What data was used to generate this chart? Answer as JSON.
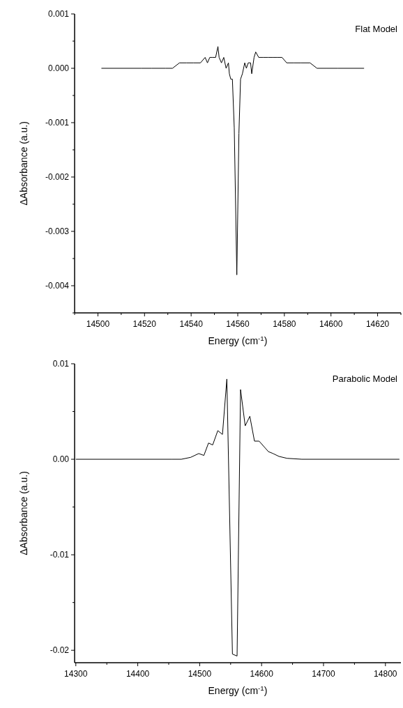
{
  "chart_data": [
    {
      "type": "line",
      "xlabel": "Energy (cm$^{-1}$)",
      "ylabel": "ΔAbsorbance (a.u.)",
      "annotations": [
        "Flat Model"
      ],
      "xlim": [
        14490,
        14630
      ],
      "ylim": [
        -0.0045,
        0.001
      ],
      "xticks": [
        {
          "value": 14490,
          "label": null
        },
        14500,
        {
          "value": 14510,
          "label": null
        },
        14520,
        {
          "value": 14530,
          "label": null
        },
        14540,
        {
          "value": 14550,
          "label": null
        },
        14560,
        {
          "value": 14570,
          "label": null
        },
        14580,
        {
          "value": 14590,
          "label": null
        },
        14600,
        {
          "value": 14610,
          "label": null
        },
        14620,
        {
          "value": 14630,
          "label": null
        }
      ],
      "yticks": [
        {
          "value": -0.0045,
          "label": null
        },
        {
          "value": -0.004,
          "label": "-0.004"
        },
        {
          "value": -0.0035,
          "label": null
        },
        {
          "value": -0.003,
          "label": "-0.003"
        },
        {
          "value": -0.0025,
          "label": null
        },
        {
          "value": -0.002,
          "label": "-0.002"
        },
        {
          "value": -0.0015,
          "label": null
        },
        {
          "value": -0.001,
          "label": "-0.001"
        },
        {
          "value": -0.0005,
          "label": null
        },
        {
          "value": 0,
          "label": "0.000"
        },
        {
          "value": 0.0005,
          "label": null
        },
        {
          "value": 0.001,
          "label": "0.001"
        }
      ],
      "grid": false,
      "series": [
        {
          "color": "#000000",
          "x": [
            14501.5,
            14518.5,
            14519,
            14523,
            14529,
            14532,
            14535,
            14538,
            14541,
            14544,
            14546,
            14547,
            14548,
            14549,
            14550.5,
            14551.5,
            14552,
            14553,
            14554,
            14555,
            14556,
            14556.4,
            14557,
            14557.7,
            14558.5,
            14559.6,
            14560.5,
            14561.2,
            14562,
            14563,
            14563.7,
            14564.5,
            14565.5,
            14566,
            14567,
            14567.7,
            14569,
            14571,
            14573,
            14575,
            14577,
            14579,
            14581,
            14584,
            14587,
            14591,
            14594,
            14598,
            14603,
            14614.2
          ],
          "values": [
            0,
            0,
            0,
            0,
            0,
            0,
            0.0001,
            0.0001,
            0.0001,
            0.0001,
            0.0002,
            0.0001,
            0.0002,
            0.0002,
            0.0002,
            0.0004,
            0.0002,
            0.0001,
            0.0002,
            0,
            0.0001,
            -0.0001,
            -0.0002,
            -0.0002,
            -0.0011,
            -0.0038,
            -0.0012,
            -0.0002,
            -0.0001,
            0.0001,
            0,
            0.0001,
            0.0001,
            -0.0001,
            0.0002,
            0.0003,
            0.0002,
            0.0002,
            0.0002,
            0.0002,
            0.0002,
            0.0002,
            0.0001,
            0.0001,
            0.0001,
            0.0001,
            0,
            0,
            0,
            0
          ]
        }
      ]
    },
    {
      "type": "line",
      "xlabel": "Energy (cm$^{-1}$)",
      "ylabel": "ΔAbsorbance (a.u.)",
      "annotations": [
        "Parabolic Model"
      ],
      "xlim": [
        14298,
        14825
      ],
      "ylim": [
        -0.0213,
        0.01
      ],
      "xticks": [
        14300,
        {
          "value": 14350,
          "label": null
        },
        14400,
        {
          "value": 14450,
          "label": null
        },
        14500,
        {
          "value": 14550,
          "label": null
        },
        14600,
        {
          "value": 14650,
          "label": null
        },
        14700,
        {
          "value": 14750,
          "label": null
        },
        14800
      ],
      "yticks": [
        {
          "value": -0.02,
          "label": "-0.02"
        },
        {
          "value": -0.015,
          "label": null
        },
        {
          "value": -0.01,
          "label": "-0.01"
        },
        {
          "value": -0.005,
          "label": null
        },
        {
          "value": 0,
          "label": "0.00"
        },
        {
          "value": 0.005,
          "label": null
        },
        {
          "value": 0.01,
          "label": "0.01"
        }
      ],
      "grid": false,
      "series": [
        {
          "color": "#000000",
          "x": [
            14300,
            14455.5,
            14470.4,
            14485.4,
            14498.5,
            14506.8,
            14514.3,
            14521,
            14529.3,
            14536.8,
            14543.9,
            14552.9,
            14560.4,
            14566,
            14573.5,
            14581,
            14588.5,
            14596,
            14611,
            14618.5,
            14628,
            14641,
            14665,
            14822.6
          ],
          "values": [
            0,
            0,
            0,
            0.0002,
            0.0006,
            0.0004,
            0.0017,
            0.0015,
            0.003,
            0.0026,
            0.0084,
            -0.0204,
            -0.0206,
            0.0073,
            0.0035,
            0.0045,
            0.0019,
            0.0019,
            0.0008,
            0.0006,
            0.0003,
            0.0001,
            0,
            0
          ]
        }
      ]
    }
  ]
}
